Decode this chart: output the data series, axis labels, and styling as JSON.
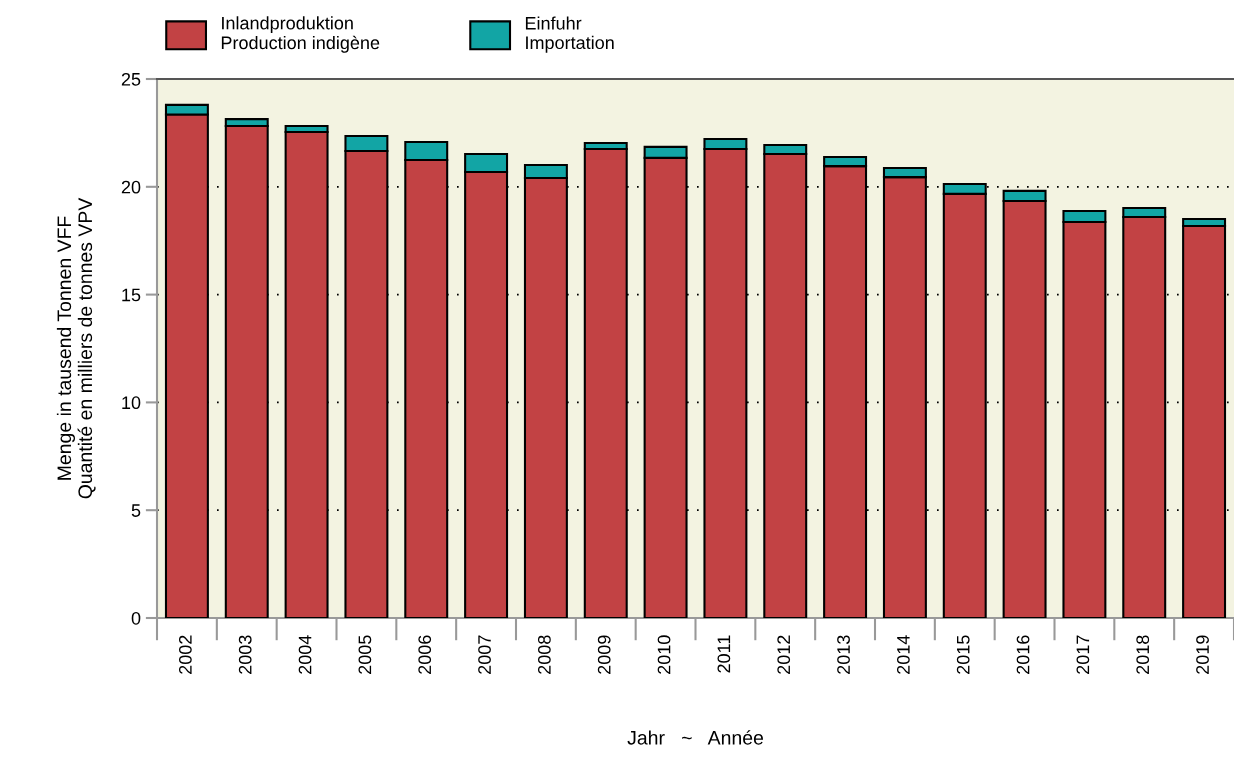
{
  "chart_data": {
    "type": "bar",
    "stacked": true,
    "categories": [
      "2002",
      "2003",
      "2004",
      "2005",
      "2006",
      "2007",
      "2008",
      "2009",
      "2010",
      "2011",
      "2012",
      "2013",
      "2014",
      "2015",
      "2016",
      "2017",
      "2018",
      "2019"
    ],
    "series": [
      {
        "name": "Inlandproduktion\nProduction indigène",
        "color": "#c24244",
        "values": [
          23.35,
          22.82,
          22.54,
          21.66,
          21.24,
          20.69,
          20.41,
          21.75,
          21.34,
          21.75,
          21.52,
          20.96,
          20.45,
          19.67,
          19.34,
          18.37,
          18.6,
          18.18
        ]
      },
      {
        "name": "Einfuhr\nImportation",
        "color": "#12a5a5",
        "values": [
          0.45,
          0.32,
          0.28,
          0.7,
          0.84,
          0.83,
          0.6,
          0.28,
          0.51,
          0.47,
          0.42,
          0.42,
          0.42,
          0.46,
          0.47,
          0.51,
          0.42,
          0.33
        ]
      }
    ],
    "xlabel": "Jahr   ~   Année",
    "ylabel": "Menge in tausend Tonnen VFF\nQuantité en milliers de tonnes VPV",
    "ylim": [
      0,
      25
    ],
    "yticks": [
      0,
      5,
      10,
      15,
      20,
      25
    ],
    "grid": "y",
    "legend": "top left"
  }
}
